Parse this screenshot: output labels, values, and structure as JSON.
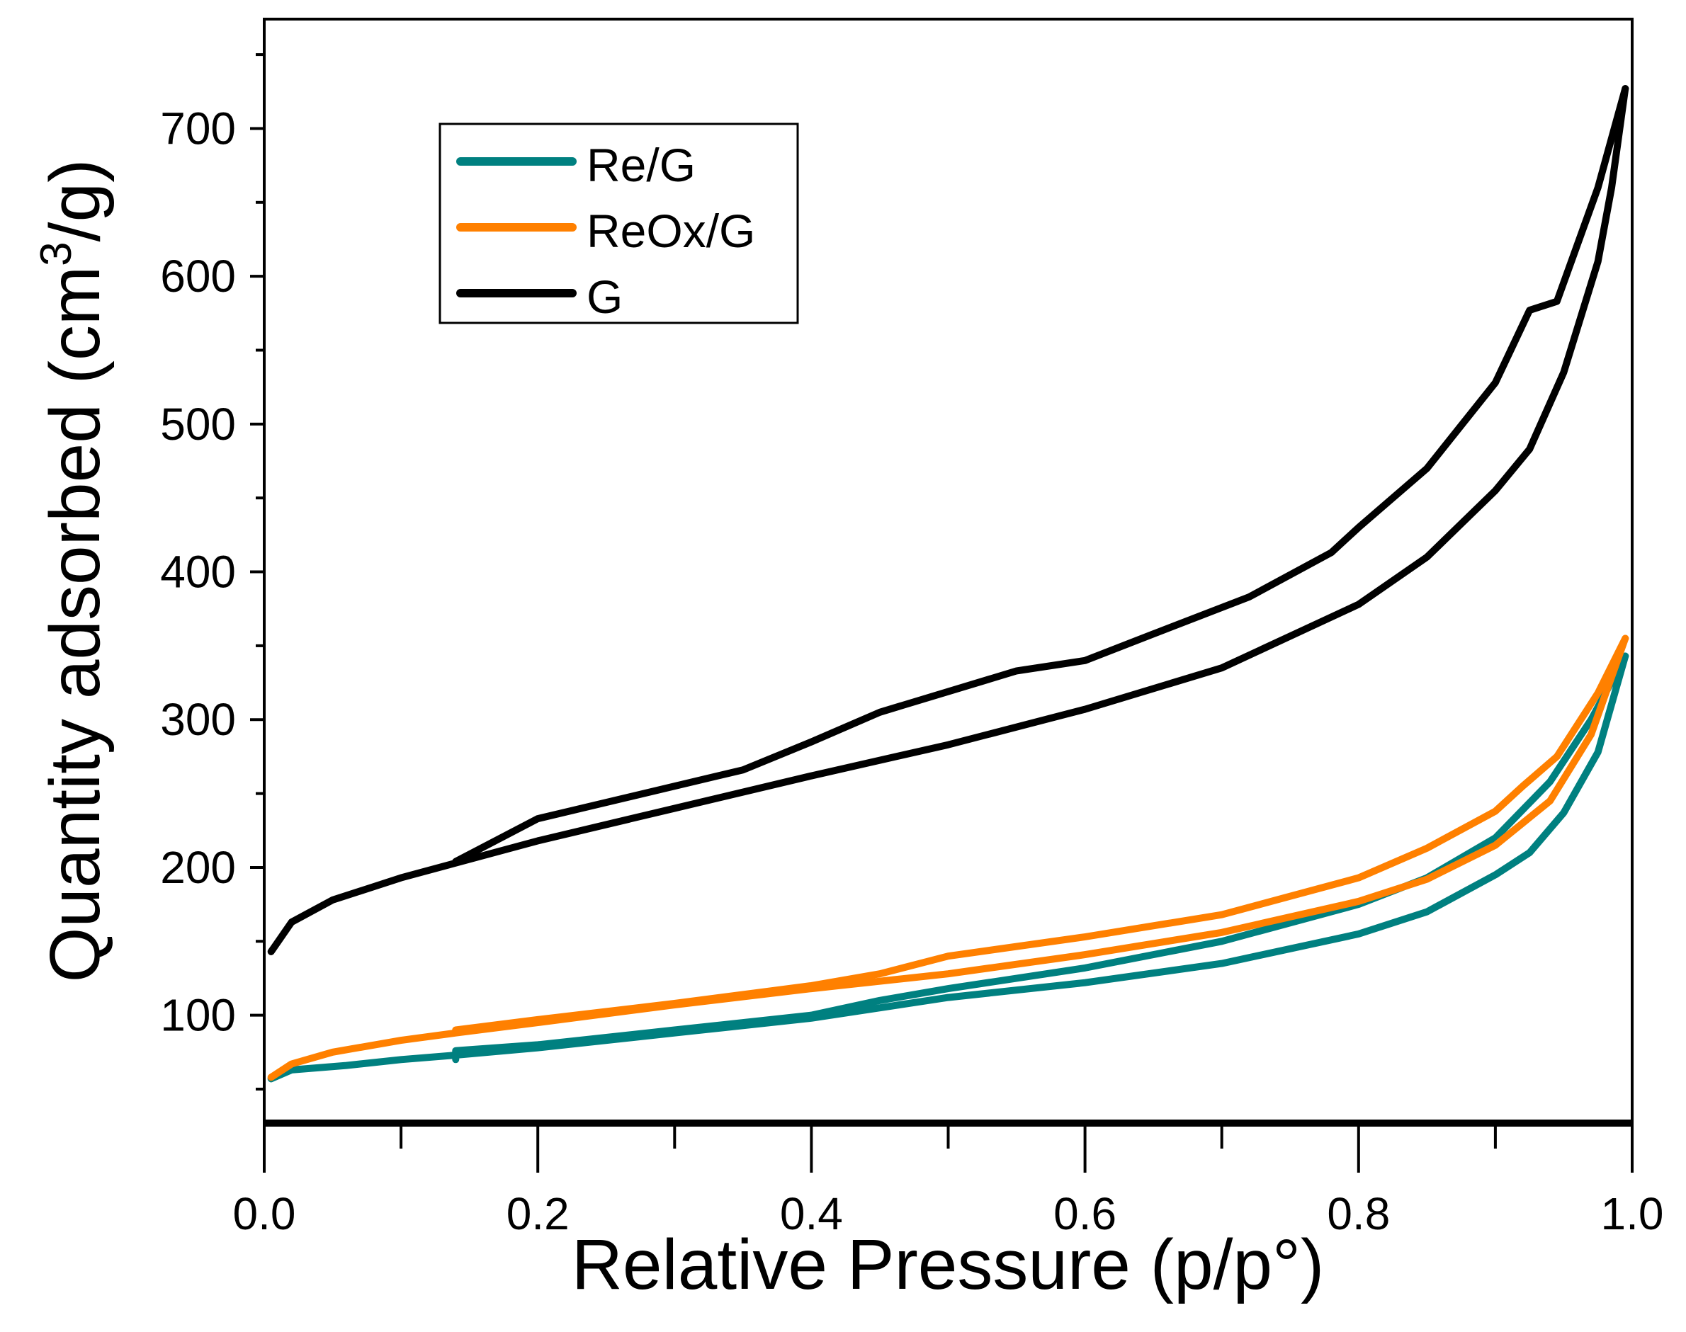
{
  "chart_data": {
    "type": "line",
    "title": "",
    "xlabel": "Relative Pressure (p/p°)",
    "ylabel_main": "Quantity adsorbed (cm",
    "ylabel_sup": "3",
    "ylabel_end": "/g)",
    "xlim": [
      0,
      1.0
    ],
    "ylim": [
      27,
      774
    ],
    "xticks": [
      0.0,
      0.2,
      0.4,
      0.6,
      0.8,
      1.0
    ],
    "xtick_labels": [
      "0.0",
      "0.2",
      "0.4",
      "0.6",
      "0.8",
      "1.0"
    ],
    "yticks": [
      100,
      200,
      300,
      400,
      500,
      600,
      700
    ],
    "ytick_labels": [
      "100",
      "200",
      "300",
      "400",
      "500",
      "600",
      "700"
    ],
    "grid": false,
    "legend_position": "top-left",
    "series": [
      {
        "name": "Re/G",
        "color": "#008080",
        "adsorption": {
          "x": [
            0.005,
            0.02,
            0.06,
            0.1,
            0.14,
            0.2,
            0.3,
            0.4,
            0.5,
            0.6,
            0.7,
            0.8,
            0.85,
            0.9,
            0.925,
            0.95,
            0.975,
            0.995
          ],
          "y": [
            57,
            63,
            66,
            70,
            73,
            78,
            88,
            98,
            112,
            122,
            135,
            155,
            170,
            195,
            210,
            237,
            278,
            343
          ]
        },
        "desorption": {
          "x": [
            0.995,
            0.97,
            0.94,
            0.9,
            0.85,
            0.8,
            0.7,
            0.6,
            0.5,
            0.45,
            0.4,
            0.3,
            0.2,
            0.14,
            0.14
          ],
          "y": [
            343,
            300,
            258,
            220,
            193,
            175,
            150,
            132,
            118,
            110,
            100,
            90,
            80,
            76,
            70
          ]
        }
      },
      {
        "name": "ReOx/G",
        "color": "#FF8000",
        "adsorption": {
          "x": [
            0.005,
            0.02,
            0.05,
            0.1,
            0.14,
            0.2,
            0.3,
            0.4,
            0.5,
            0.6,
            0.7,
            0.8,
            0.85,
            0.9,
            0.94,
            0.97,
            0.995
          ],
          "y": [
            58,
            67,
            75,
            83,
            88,
            95,
            107,
            118,
            128,
            141,
            156,
            177,
            192,
            215,
            245,
            290,
            355
          ]
        },
        "desorption": {
          "x": [
            0.995,
            0.975,
            0.945,
            0.92,
            0.9,
            0.85,
            0.8,
            0.7,
            0.6,
            0.5,
            0.45,
            0.4,
            0.3,
            0.2,
            0.14
          ],
          "y": [
            355,
            318,
            275,
            255,
            238,
            213,
            193,
            168,
            153,
            140,
            128,
            120,
            108,
            97,
            90
          ]
        }
      },
      {
        "name": "G",
        "color": "#000000",
        "adsorption": {
          "x": [
            0.005,
            0.02,
            0.05,
            0.1,
            0.14,
            0.2,
            0.3,
            0.4,
            0.5,
            0.6,
            0.7,
            0.8,
            0.85,
            0.9,
            0.925,
            0.95,
            0.975,
            0.985,
            0.995
          ],
          "y": [
            143,
            163,
            178,
            193,
            203,
            218,
            240,
            262,
            283,
            307,
            335,
            378,
            410,
            455,
            483,
            535,
            610,
            660,
            727
          ]
        },
        "desorption": {
          "x": [
            0.995,
            0.975,
            0.945,
            0.925,
            0.9,
            0.85,
            0.8,
            0.78,
            0.72,
            0.65,
            0.6,
            0.55,
            0.45,
            0.4,
            0.35,
            0.2,
            0.14
          ],
          "y": [
            727,
            660,
            583,
            577,
            528,
            470,
            430,
            413,
            383,
            358,
            340,
            333,
            305,
            285,
            266,
            233,
            204
          ]
        }
      }
    ]
  }
}
